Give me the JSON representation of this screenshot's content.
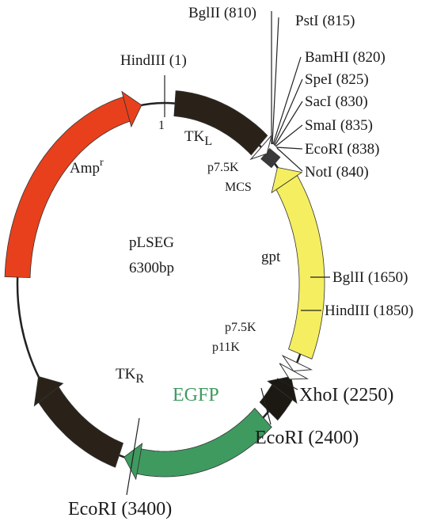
{
  "plasmid": {
    "name": "pLSEG",
    "size": "6300bp"
  },
  "features": [
    {
      "label": "Amp",
      "superscript": "r"
    },
    {
      "label": "TK",
      "subscript": "L"
    },
    {
      "label": "MCS"
    },
    {
      "label": "gpt"
    },
    {
      "label": "EGFP"
    },
    {
      "label": "TK",
      "subscript": "R"
    }
  ],
  "promoters": [
    "p7.5K",
    "p7.5K",
    "p11K"
  ],
  "origin": "1",
  "sites": [
    "HindIII (1)",
    "BglII (810)",
    "PstI (815)",
    "BamHI (820)",
    "SpeI (825)",
    "SacI (830)",
    "SmaI (835)",
    "EcoRI (838)",
    "NotI (840)",
    "BglII (1650)",
    "HindIII (1850)",
    "XhoI (2250)",
    "EcoRI (2400)",
    "EcoRI (3400)"
  ]
}
